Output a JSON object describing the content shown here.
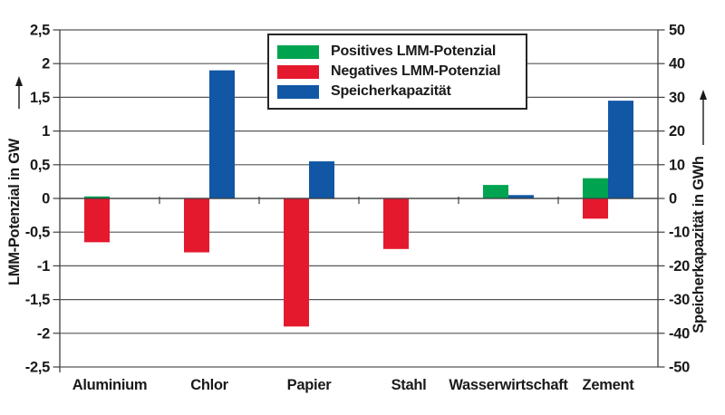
{
  "chart_data": {
    "type": "bar",
    "title": "",
    "categories": [
      "Aluminium",
      "Chlor",
      "Papier",
      "Stahl",
      "Wasserwirtschaft",
      "Zement"
    ],
    "series": [
      {
        "name": "Positives LMM-Potenzial",
        "color": "#00a350",
        "axis": "left",
        "values": [
          0.03,
          0,
          0,
          0,
          0.2,
          0.3
        ]
      },
      {
        "name": "Negatives LMM-Potenzial",
        "color": "#e5192e",
        "axis": "left",
        "values": [
          -0.65,
          -0.8,
          -1.9,
          -0.75,
          0,
          -0.3
        ]
      },
      {
        "name": "Speicherkapazität",
        "color": "#1157a5",
        "axis": "right",
        "values": [
          0,
          38,
          11,
          0,
          1,
          29
        ]
      }
    ],
    "left_axis": {
      "label": "LMM-Potenzial in GW",
      "min": -2.5,
      "max": 2.5,
      "step": 0.5,
      "tick_labels": [
        "2,5",
        "2",
        "1,5",
        "1",
        "0,5",
        "0",
        "-0,5",
        "-1",
        "-1,5",
        "-2",
        "-2,5"
      ]
    },
    "right_axis": {
      "label": "Speicherkapazität in GWh",
      "min": -50,
      "max": 50,
      "step": 10,
      "tick_labels": [
        "50",
        "40",
        "30",
        "20",
        "10",
        "0",
        "-10",
        "-20",
        "-30",
        "-40",
        "-50"
      ]
    },
    "grid": true,
    "legend_position": "top-center",
    "colors": {
      "grid": "#55565a",
      "frame": "#3f4042",
      "text": "#1a1a1a"
    }
  }
}
